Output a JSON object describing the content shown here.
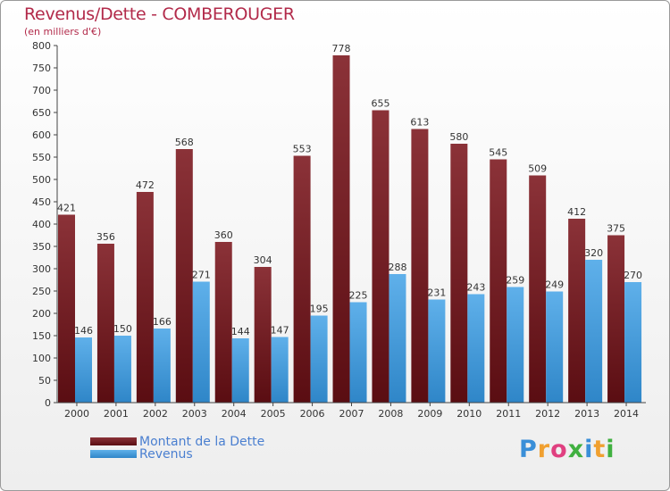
{
  "title": "Revenus/Dette - COMBEROUGER",
  "subtitle": "(en milliers d'€)",
  "colors": {
    "debt_light": "#8b3238",
    "debt_dark": "#5a0d12",
    "revenue_light": "#5fb0ea",
    "revenue_dark": "#2f86c8",
    "title": "#b22a4a",
    "legend_text": "#4a7fd0"
  },
  "legend": [
    {
      "label": "Montant de la Dette"
    },
    {
      "label": "Revenus"
    }
  ],
  "logo": {
    "text": "Proxiti",
    "letter_colors": [
      "#3a8fd8",
      "#f0a030",
      "#e04080",
      "#40b040",
      "#3a8fd8",
      "#f0a030",
      "#40b040"
    ]
  },
  "chart_data": {
    "type": "bar",
    "title": "Revenus/Dette - COMBEROUGER",
    "subtitle": "(en milliers d'€)",
    "categories": [
      "2000",
      "2001",
      "2002",
      "2003",
      "2004",
      "2005",
      "2006",
      "2007",
      "2008",
      "2009",
      "2010",
      "2011",
      "2012",
      "2013",
      "2014"
    ],
    "series": [
      {
        "name": "Montant de la Dette",
        "values": [
          421,
          356,
          472,
          568,
          360,
          304,
          553,
          778,
          655,
          613,
          580,
          545,
          509,
          412,
          375
        ]
      },
      {
        "name": "Revenus",
        "values": [
          146,
          150,
          166,
          271,
          144,
          147,
          195,
          225,
          288,
          231,
          243,
          259,
          249,
          320,
          270
        ]
      }
    ],
    "ylim": [
      0,
      800
    ],
    "yticks": [
      0,
      50,
      100,
      150,
      200,
      250,
      300,
      350,
      400,
      450,
      500,
      550,
      600,
      650,
      700,
      750,
      800
    ],
    "grid": false,
    "legend_position": "bottom-left"
  }
}
